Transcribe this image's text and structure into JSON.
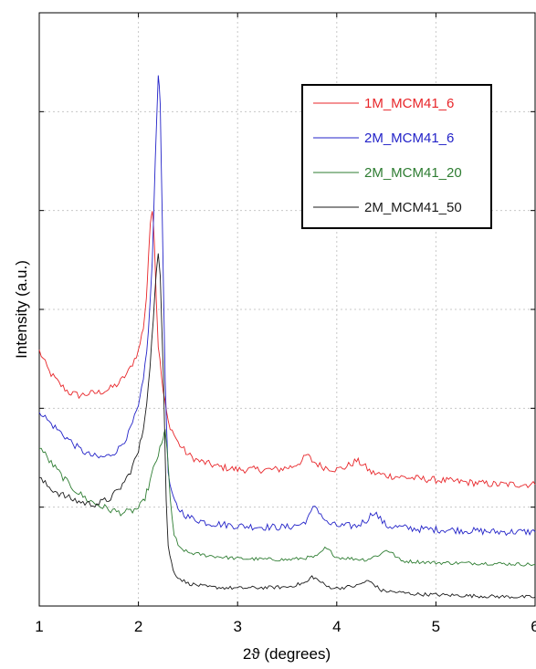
{
  "chart_data": {
    "type": "line",
    "title": "",
    "xlabel": "2ϑ (degrees)",
    "ylabel": "Intensity (a.u.)",
    "xlim": [
      1,
      6
    ],
    "ylim": [
      0,
      100
    ],
    "x_ticks": [
      "1",
      "2",
      "3",
      "4",
      "5",
      "6"
    ],
    "y_ticks_labeled": false,
    "grid": true,
    "legend_position": "top-right",
    "series": [
      {
        "name": "1M_MCM41_6",
        "color": "#e8262a",
        "points": [
          [
            1.0,
            43.0
          ],
          [
            1.1,
            39.5
          ],
          [
            1.2,
            37.5
          ],
          [
            1.3,
            36.0
          ],
          [
            1.4,
            35.5
          ],
          [
            1.5,
            35.8
          ],
          [
            1.6,
            36.0
          ],
          [
            1.7,
            36.5
          ],
          [
            1.8,
            37.5
          ],
          [
            1.9,
            39.5
          ],
          [
            2.0,
            43.0
          ],
          [
            2.05,
            47.0
          ],
          [
            2.08,
            52.0
          ],
          [
            2.1,
            58.0
          ],
          [
            2.12,
            65.0
          ],
          [
            2.14,
            67.0
          ],
          [
            2.16,
            62.0
          ],
          [
            2.18,
            52.0
          ],
          [
            2.2,
            44.0
          ],
          [
            2.25,
            36.0
          ],
          [
            2.3,
            31.0
          ],
          [
            2.4,
            27.5
          ],
          [
            2.5,
            25.5
          ],
          [
            2.6,
            24.5
          ],
          [
            2.8,
            23.5
          ],
          [
            3.0,
            23.0
          ],
          [
            3.2,
            23.0
          ],
          [
            3.4,
            23.0
          ],
          [
            3.55,
            23.5
          ],
          [
            3.65,
            24.5
          ],
          [
            3.7,
            25.5
          ],
          [
            3.75,
            24.5
          ],
          [
            3.85,
            23.5
          ],
          [
            4.0,
            23.0
          ],
          [
            4.1,
            23.5
          ],
          [
            4.2,
            24.5
          ],
          [
            4.25,
            24.0
          ],
          [
            4.35,
            22.5
          ],
          [
            4.5,
            22.0
          ],
          [
            4.8,
            21.5
          ],
          [
            5.2,
            21.0
          ],
          [
            5.6,
            20.5
          ],
          [
            6.0,
            20.5
          ]
        ]
      },
      {
        "name": "2M_MCM41_6",
        "color": "#2323c8",
        "points": [
          [
            1.0,
            33.0
          ],
          [
            1.1,
            31.0
          ],
          [
            1.2,
            29.5
          ],
          [
            1.3,
            28.0
          ],
          [
            1.4,
            26.5
          ],
          [
            1.5,
            25.5
          ],
          [
            1.6,
            25.0
          ],
          [
            1.7,
            25.3
          ],
          [
            1.8,
            26.5
          ],
          [
            1.9,
            29.0
          ],
          [
            2.0,
            33.5
          ],
          [
            2.05,
            38.0
          ],
          [
            2.1,
            46.0
          ],
          [
            2.14,
            58.0
          ],
          [
            2.17,
            75.0
          ],
          [
            2.2,
            90.0
          ],
          [
            2.22,
            85.0
          ],
          [
            2.24,
            65.0
          ],
          [
            2.27,
            38.0
          ],
          [
            2.3,
            22.0
          ],
          [
            2.35,
            18.0
          ],
          [
            2.4,
            16.5
          ],
          [
            2.5,
            15.0
          ],
          [
            2.7,
            14.0
          ],
          [
            3.0,
            13.5
          ],
          [
            3.3,
            13.3
          ],
          [
            3.5,
            13.3
          ],
          [
            3.65,
            13.8
          ],
          [
            3.72,
            15.0
          ],
          [
            3.78,
            17.0
          ],
          [
            3.82,
            16.0
          ],
          [
            3.9,
            14.0
          ],
          [
            4.0,
            13.5
          ],
          [
            4.2,
            13.5
          ],
          [
            4.3,
            14.5
          ],
          [
            4.38,
            16.0
          ],
          [
            4.42,
            15.0
          ],
          [
            4.5,
            13.5
          ],
          [
            4.8,
            13.0
          ],
          [
            5.2,
            12.8
          ],
          [
            5.6,
            12.5
          ],
          [
            6.0,
            12.5
          ]
        ]
      },
      {
        "name": "2M_MCM41_20",
        "color": "#2e7d32",
        "points": [
          [
            1.0,
            27.0
          ],
          [
            1.1,
            24.5
          ],
          [
            1.2,
            22.5
          ],
          [
            1.3,
            20.5
          ],
          [
            1.4,
            19.0
          ],
          [
            1.5,
            17.8
          ],
          [
            1.6,
            17.0
          ],
          [
            1.7,
            16.3
          ],
          [
            1.8,
            15.8
          ],
          [
            1.9,
            15.8
          ],
          [
            2.0,
            16.5
          ],
          [
            2.05,
            17.5
          ],
          [
            2.1,
            20.0
          ],
          [
            2.15,
            23.0
          ],
          [
            2.2,
            25.5
          ],
          [
            2.25,
            28.0
          ],
          [
            2.27,
            30.0
          ],
          [
            2.29,
            26.0
          ],
          [
            2.32,
            18.0
          ],
          [
            2.36,
            12.0
          ],
          [
            2.4,
            10.0
          ],
          [
            2.5,
            9.0
          ],
          [
            2.7,
            8.5
          ],
          [
            3.0,
            8.0
          ],
          [
            3.5,
            7.8
          ],
          [
            3.8,
            8.3
          ],
          [
            3.88,
            9.7
          ],
          [
            3.92,
            9.4
          ],
          [
            4.0,
            8.2
          ],
          [
            4.3,
            7.8
          ],
          [
            4.45,
            8.8
          ],
          [
            4.5,
            9.5
          ],
          [
            4.55,
            9.0
          ],
          [
            4.65,
            7.6
          ],
          [
            5.0,
            7.3
          ],
          [
            5.5,
            7.2
          ],
          [
            6.0,
            7.0
          ]
        ]
      },
      {
        "name": "2M_MCM41_50",
        "color": "#1a1a1a",
        "points": [
          [
            1.0,
            21.5
          ],
          [
            1.1,
            20.0
          ],
          [
            1.2,
            19.0
          ],
          [
            1.3,
            18.2
          ],
          [
            1.4,
            17.6
          ],
          [
            1.5,
            17.2
          ],
          [
            1.6,
            17.3
          ],
          [
            1.7,
            18.0
          ],
          [
            1.8,
            19.5
          ],
          [
            1.9,
            22.0
          ],
          [
            2.0,
            26.0
          ],
          [
            2.05,
            30.0
          ],
          [
            2.1,
            37.0
          ],
          [
            2.15,
            48.0
          ],
          [
            2.18,
            56.0
          ],
          [
            2.2,
            60.0
          ],
          [
            2.22,
            56.0
          ],
          [
            2.25,
            40.0
          ],
          [
            2.28,
            18.0
          ],
          [
            2.3,
            10.0
          ],
          [
            2.35,
            6.0
          ],
          [
            2.4,
            4.8
          ],
          [
            2.5,
            3.8
          ],
          [
            2.7,
            3.2
          ],
          [
            3.0,
            3.0
          ],
          [
            3.5,
            3.2
          ],
          [
            3.7,
            4.0
          ],
          [
            3.75,
            5.0
          ],
          [
            3.8,
            4.5
          ],
          [
            3.9,
            3.3
          ],
          [
            4.0,
            3.0
          ],
          [
            4.2,
            3.4
          ],
          [
            4.3,
            4.2
          ],
          [
            4.35,
            4.0
          ],
          [
            4.45,
            2.6
          ],
          [
            4.8,
            2.0
          ],
          [
            5.2,
            1.8
          ],
          [
            5.6,
            1.6
          ],
          [
            6.0,
            1.5
          ]
        ]
      }
    ]
  }
}
